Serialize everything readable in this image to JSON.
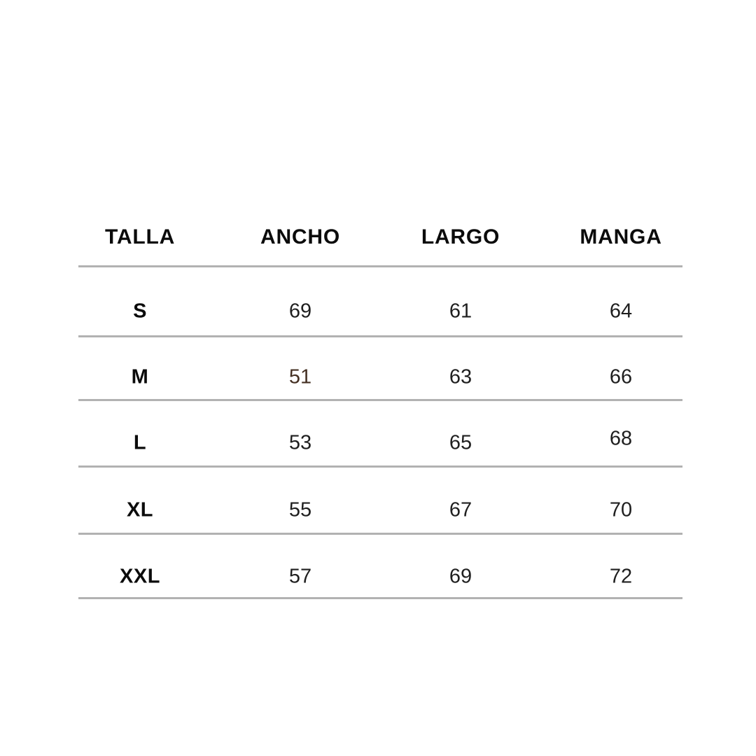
{
  "chart_data": {
    "type": "table",
    "title": "",
    "columns": [
      "TALLA",
      "ANCHO",
      "LARGO",
      "MANGA"
    ],
    "rows": [
      [
        "S",
        "69",
        "61",
        "64"
      ],
      [
        "M",
        "51",
        "63",
        "66"
      ],
      [
        "L",
        "53",
        "65",
        "68"
      ],
      [
        "XL",
        "55",
        "67",
        "70"
      ],
      [
        "XXL",
        "57",
        "69",
        "72"
      ]
    ],
    "layout_hints": {
      "grid": "horizontal-dividers-only",
      "divider_count": 6,
      "header_style": "bold-uppercase",
      "size_column_style": "bold"
    }
  },
  "styles": {
    "background_color": "#ffffff",
    "header_text_color": "#0b0b0b",
    "cell_text_color": "#1f1f1f",
    "accent_value_color": "#453023",
    "divider_color": "#b2b2b2"
  },
  "accent_cell": {
    "row": "M",
    "column": "ANCHO",
    "value": "51"
  }
}
